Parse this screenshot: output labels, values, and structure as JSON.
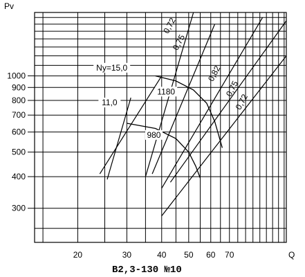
{
  "chart_data": {
    "type": "line",
    "title": "",
    "caption": "В2,3-130 №10",
    "ylabel": "Pv",
    "xlabel": "Q",
    "x_ticks": [
      20,
      30,
      40,
      50,
      60,
      70
    ],
    "y_ticks": [
      300,
      400,
      500,
      600,
      700,
      800,
      900,
      1000
    ],
    "xscale": "log",
    "yscale": "log",
    "xlim": [
      14,
      112
    ],
    "ylim": [
      220,
      1780
    ],
    "grid": true,
    "fan_lines": [
      {
        "name": "Ny=15,0",
        "points": [
          [
            40.0,
            1000
          ],
          [
            24.0,
            410
          ]
        ]
      },
      {
        "name": "11,0",
        "points": [
          [
            31.0,
            820
          ],
          [
            25.5,
            390
          ]
        ]
      },
      {
        "name": "0,72",
        "points": [
          [
            52.0,
            1780
          ],
          [
            35.0,
            400
          ]
        ]
      },
      {
        "name": "0,75",
        "points": [
          [
            62.0,
            1600
          ],
          [
            37.0,
            410
          ]
        ]
      },
      {
        "name": "0,82",
        "points": [
          [
            92.0,
            1700
          ],
          [
            40.0,
            360
          ]
        ]
      },
      {
        "name": "0,75",
        "points": [
          [
            112.0,
            1650
          ],
          [
            43.0,
            380
          ]
        ]
      },
      {
        "name": "0,72",
        "points": [
          [
            112.0,
            1200
          ],
          [
            40.0,
            280
          ]
        ]
      }
    ],
    "speed_curves": [
      {
        "name": "1180",
        "points": [
          [
            38.0,
            1000
          ],
          [
            45.0,
            955
          ],
          [
            52.0,
            880
          ],
          [
            58.0,
            780
          ],
          [
            62.0,
            660
          ],
          [
            66.0,
            520
          ]
        ]
      },
      {
        "name": "980",
        "points": [
          [
            30.0,
            650
          ],
          [
            38.0,
            620
          ],
          [
            45.0,
            565
          ],
          [
            50.0,
            500
          ],
          [
            53.0,
            440
          ],
          [
            55.0,
            395
          ]
        ]
      }
    ],
    "curve_labels": [
      {
        "text": "Ny=15,0",
        "x": 26.5,
        "y": 1050
      },
      {
        "text": "11,0",
        "x": 26.0,
        "y": 765
      },
      {
        "text": "1180",
        "x": 41.5,
        "y": 845
      },
      {
        "text": "980",
        "x": 37.5,
        "y": 570
      },
      {
        "text": "0,72",
        "x": 43.5,
        "y": 1560
      },
      {
        "text": "0,75",
        "x": 47.0,
        "y": 1340
      },
      {
        "text": "0,82",
        "x": 63.0,
        "y": 1010
      },
      {
        "text": "0,75",
        "x": 73.0,
        "y": 880
      },
      {
        "text": "0,72",
        "x": 79.0,
        "y": 780
      }
    ]
  }
}
